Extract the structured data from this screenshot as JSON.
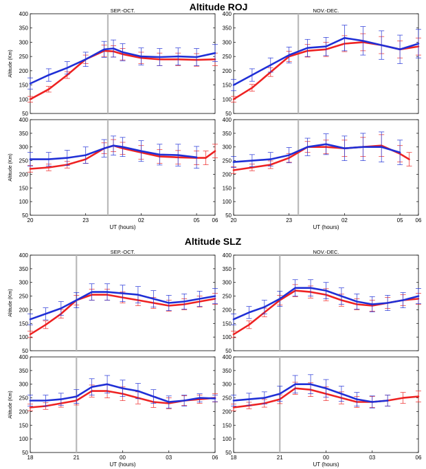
{
  "figure": {
    "section_titles": [
      "Altitude ROJ",
      "Altitude SLZ"
    ],
    "series_colors": {
      "red": "#ee2222",
      "blue": "#1f2fd6"
    },
    "sunset_line_color": "#b9b9b9"
  },
  "chart_data": [
    {
      "type": "line",
      "section": "ROJ",
      "panel": "top-left",
      "subtitle": "SEP.-OCT.",
      "ylabel": "Altitude (Km)",
      "xlabel": "",
      "ylim": [
        50,
        400
      ],
      "yticks": [
        "50",
        "100",
        "150",
        "200",
        "250",
        "300",
        "350",
        "400"
      ],
      "xlim": [
        20,
        30
      ],
      "xticks": [],
      "xticklabels": [],
      "sunset_x": 24.2,
      "grid": false,
      "series": [
        {
          "color": "red",
          "x": [
            20,
            21,
            22,
            23,
            24,
            24.5,
            25,
            26,
            27,
            28,
            29,
            30
          ],
          "values": [
            100,
            135,
            185,
            240,
            270,
            268,
            258,
            245,
            240,
            240,
            238,
            240
          ],
          "err": [
            10,
            10,
            12,
            15,
            20,
            20,
            20,
            20,
            22,
            22,
            22,
            22
          ]
        },
        {
          "color": "blue",
          "x": [
            20,
            21,
            22,
            23,
            24,
            24.5,
            25,
            26,
            27,
            28,
            29,
            30
          ],
          "values": [
            155,
            185,
            210,
            240,
            275,
            278,
            265,
            250,
            248,
            250,
            248,
            262
          ],
          "err": [
            20,
            22,
            22,
            25,
            28,
            30,
            30,
            30,
            30,
            30,
            30,
            30
          ]
        }
      ]
    },
    {
      "type": "line",
      "section": "ROJ",
      "panel": "top-right",
      "subtitle": "NOV.-DEC.",
      "ylabel": "",
      "xlabel": "",
      "ylim": [
        50,
        400
      ],
      "yticks": [
        "50",
        "100",
        "150",
        "200",
        "250",
        "300",
        "350",
        "400"
      ],
      "xlim": [
        20,
        30
      ],
      "xticks": [],
      "xticklabels": [],
      "sunset_x": 23.5,
      "grid": false,
      "series": [
        {
          "color": "red",
          "x": [
            20,
            21,
            22,
            23,
            24,
            25,
            26,
            27,
            28,
            29,
            30
          ],
          "values": [
            100,
            140,
            195,
            250,
            270,
            275,
            295,
            300,
            290,
            275,
            285
          ],
          "err": [
            10,
            12,
            15,
            18,
            22,
            25,
            28,
            30,
            30,
            30,
            30
          ]
        },
        {
          "color": "blue",
          "x": [
            20,
            21,
            22,
            23,
            24,
            25,
            26,
            27,
            28,
            29,
            30
          ],
          "values": [
            150,
            185,
            220,
            255,
            280,
            285,
            315,
            305,
            290,
            275,
            295
          ],
          "err": [
            20,
            22,
            25,
            28,
            30,
            32,
            45,
            50,
            50,
            50,
            50
          ]
        }
      ]
    },
    {
      "type": "line",
      "section": "ROJ",
      "panel": "bottom-left",
      "subtitle": "",
      "ylabel": "Altitude (Km)",
      "xlabel": "UT (hours)",
      "ylim": [
        50,
        400
      ],
      "yticks": [
        "50",
        "100",
        "150",
        "200",
        "250",
        "300",
        "350",
        "400"
      ],
      "xlim": [
        20,
        30
      ],
      "xticks": [
        20,
        23,
        26,
        29,
        30
      ],
      "xticklabels": [
        "20",
        "23",
        "02",
        "05",
        "06"
      ],
      "sunset_x": 24.2,
      "grid": false,
      "series": [
        {
          "color": "red",
          "x": [
            20,
            21,
            22,
            23,
            24,
            24.5,
            25,
            26,
            27,
            28,
            29,
            29.5,
            30
          ],
          "values": [
            220,
            225,
            235,
            255,
            295,
            305,
            295,
            280,
            265,
            262,
            260,
            260,
            285
          ],
          "err": [
            12,
            12,
            12,
            15,
            20,
            22,
            22,
            25,
            25,
            25,
            25,
            25,
            25
          ]
        },
        {
          "color": "blue",
          "x": [
            20,
            21,
            22,
            23,
            24,
            24.5,
            25,
            26,
            27,
            28,
            29
          ],
          "values": [
            255,
            255,
            260,
            270,
            295,
            305,
            300,
            285,
            272,
            270,
            262
          ],
          "err": [
            25,
            25,
            28,
            30,
            32,
            35,
            35,
            38,
            38,
            40,
            40
          ]
        }
      ]
    },
    {
      "type": "line",
      "section": "ROJ",
      "panel": "bottom-right",
      "subtitle": "",
      "ylabel": "",
      "xlabel": "UT (hours)",
      "ylim": [
        50,
        400
      ],
      "yticks": [
        "50",
        "100",
        "150",
        "200",
        "250",
        "300",
        "350",
        "400"
      ],
      "xlim": [
        20,
        30
      ],
      "xticks": [
        20,
        23,
        26,
        29,
        30
      ],
      "xticklabels": [
        "20",
        "23",
        "02",
        "05",
        "06"
      ],
      "sunset_x": 23.5,
      "grid": false,
      "series": [
        {
          "color": "red",
          "x": [
            20,
            21,
            22,
            23,
            24,
            25,
            26,
            27,
            28,
            29,
            29.5
          ],
          "values": [
            215,
            225,
            235,
            260,
            300,
            300,
            295,
            300,
            305,
            275,
            255
          ],
          "err": [
            12,
            12,
            14,
            16,
            20,
            25,
            30,
            35,
            40,
            30,
            25
          ]
        },
        {
          "color": "blue",
          "x": [
            20,
            21,
            22,
            23,
            24,
            25,
            26,
            27,
            28,
            29
          ],
          "values": [
            245,
            250,
            255,
            270,
            300,
            310,
            295,
            300,
            300,
            280
          ],
          "err": [
            20,
            22,
            25,
            28,
            32,
            38,
            45,
            50,
            55,
            45
          ]
        }
      ]
    },
    {
      "type": "line",
      "section": "SLZ",
      "panel": "top-left",
      "subtitle": "SEP.-OCT.",
      "ylabel": "Altitude (Km)",
      "xlabel": "",
      "ylim": [
        50,
        400
      ],
      "yticks": [
        "50",
        "100",
        "150",
        "200",
        "250",
        "300",
        "350",
        "400"
      ],
      "xlim": [
        18,
        30
      ],
      "xticks": [],
      "xticklabels": [],
      "sunset_x": 21,
      "grid": false,
      "series": [
        {
          "color": "red",
          "x": [
            18,
            19,
            20,
            21,
            22,
            23,
            24,
            25,
            26,
            27,
            28,
            29,
            30
          ],
          "values": [
            110,
            145,
            185,
            235,
            255,
            255,
            245,
            235,
            225,
            215,
            220,
            230,
            240
          ],
          "err": [
            12,
            14,
            16,
            18,
            20,
            20,
            20,
            20,
            20,
            20,
            20,
            20,
            20
          ]
        },
        {
          "color": "blue",
          "x": [
            18,
            19,
            20,
            21,
            22,
            23,
            24,
            25,
            26,
            27,
            28,
            29,
            30
          ],
          "values": [
            165,
            185,
            205,
            235,
            265,
            265,
            260,
            255,
            240,
            225,
            230,
            240,
            250
          ],
          "err": [
            20,
            22,
            25,
            28,
            30,
            30,
            30,
            30,
            30,
            28,
            28,
            28,
            28
          ]
        }
      ]
    },
    {
      "type": "line",
      "section": "SLZ",
      "panel": "top-right",
      "subtitle": "NOV.-DEC.",
      "ylabel": "",
      "xlabel": "",
      "ylim": [
        50,
        400
      ],
      "yticks": [
        "50",
        "100",
        "150",
        "200",
        "250",
        "300",
        "350",
        "400"
      ],
      "xlim": [
        18,
        30
      ],
      "xticks": [],
      "xticklabels": [],
      "sunset_x": 21,
      "grid": false,
      "series": [
        {
          "color": "red",
          "x": [
            18,
            19,
            20,
            21,
            22,
            23,
            24,
            25,
            26,
            27,
            28,
            29,
            30
          ],
          "values": [
            110,
            145,
            190,
            235,
            270,
            265,
            255,
            235,
            220,
            215,
            225,
            235,
            240
          ],
          "err": [
            12,
            14,
            16,
            18,
            22,
            22,
            22,
            22,
            20,
            20,
            20,
            20,
            20
          ]
        },
        {
          "color": "blue",
          "x": [
            18,
            19,
            20,
            21,
            22,
            23,
            24,
            25,
            26,
            27,
            28,
            29,
            30
          ],
          "values": [
            165,
            190,
            210,
            240,
            280,
            280,
            270,
            250,
            230,
            220,
            225,
            235,
            250
          ],
          "err": [
            20,
            22,
            25,
            28,
            30,
            30,
            30,
            30,
            28,
            28,
            28,
            28,
            28
          ]
        }
      ]
    },
    {
      "type": "line",
      "section": "SLZ",
      "panel": "bottom-left",
      "subtitle": "",
      "ylabel": "Altitude (Km)",
      "xlabel": "UT (hours)",
      "ylim": [
        50,
        400
      ],
      "yticks": [
        "50",
        "100",
        "150",
        "200",
        "250",
        "300",
        "350",
        "400"
      ],
      "xlim": [
        18,
        30
      ],
      "xticks": [
        18,
        21,
        24,
        27,
        30
      ],
      "xticklabels": [
        "18",
        "21",
        "00",
        "03",
        "06"
      ],
      "sunset_x": 21,
      "grid": false,
      "series": [
        {
          "color": "red",
          "x": [
            18,
            19,
            20,
            21,
            22,
            23,
            24,
            25,
            26,
            27,
            28,
            29,
            30
          ],
          "values": [
            215,
            220,
            230,
            240,
            275,
            275,
            265,
            250,
            235,
            230,
            240,
            245,
            250
          ],
          "err": [
            12,
            12,
            14,
            16,
            22,
            25,
            25,
            22,
            20,
            20,
            18,
            15,
            15
          ]
        },
        {
          "color": "blue",
          "x": [
            18,
            19,
            20,
            21,
            22,
            23,
            24,
            25,
            26,
            27,
            28,
            29,
            30
          ],
          "values": [
            240,
            240,
            245,
            255,
            290,
            300,
            285,
            275,
            255,
            235,
            240,
            250,
            248
          ],
          "err": [
            20,
            20,
            22,
            25,
            30,
            32,
            30,
            28,
            25,
            22,
            20,
            15,
            12
          ]
        }
      ]
    },
    {
      "type": "line",
      "section": "SLZ",
      "panel": "bottom-right",
      "subtitle": "",
      "ylabel": "",
      "xlabel": "UT (hours)",
      "ylim": [
        50,
        400
      ],
      "yticks": [
        "50",
        "100",
        "150",
        "200",
        "250",
        "300",
        "350",
        "400"
      ],
      "xlim": [
        18,
        30
      ],
      "xticks": [
        18,
        21,
        24,
        27,
        30
      ],
      "xticklabels": [
        "18",
        "21",
        "00",
        "03",
        "06"
      ],
      "sunset_x": 21,
      "grid": false,
      "series": [
        {
          "color": "red",
          "x": [
            18,
            19,
            20,
            21,
            22,
            23,
            24,
            25,
            26,
            27,
            28,
            29,
            30
          ],
          "values": [
            215,
            222,
            230,
            245,
            285,
            280,
            265,
            250,
            235,
            235,
            240,
            250,
            255
          ],
          "err": [
            12,
            12,
            14,
            16,
            22,
            25,
            25,
            22,
            20,
            20,
            20,
            20,
            20
          ]
        },
        {
          "color": "blue",
          "x": [
            18,
            19,
            20,
            21,
            22,
            23,
            24,
            25,
            26,
            27,
            28
          ],
          "values": [
            240,
            245,
            250,
            265,
            300,
            300,
            285,
            265,
            245,
            235,
            240
          ],
          "err": [
            20,
            22,
            22,
            28,
            32,
            35,
            32,
            28,
            25,
            22,
            20
          ]
        }
      ]
    }
  ]
}
